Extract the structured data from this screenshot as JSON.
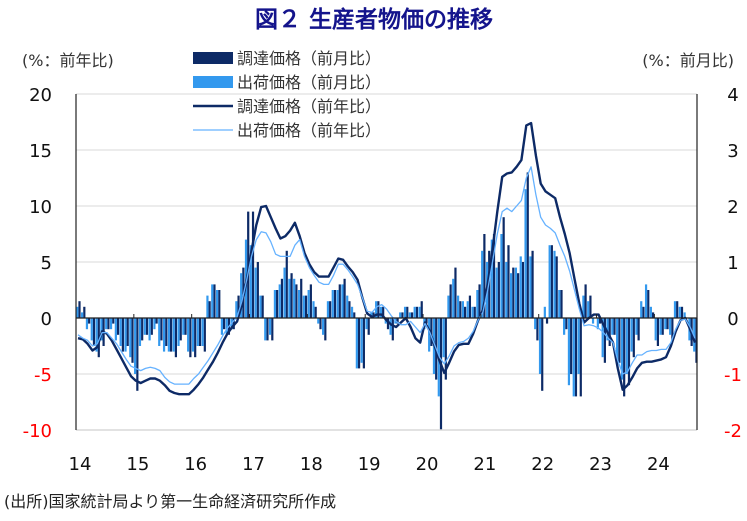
{
  "chart_data": {
    "type": "bar+line",
    "title": "図２ 生産者物価の推移",
    "left_axis_label": "(%：前年比)",
    "right_axis_label": "(%：前月比)",
    "source_note": "(出所)国家統計局より第一生命経済研究所作成",
    "ylim_left": [
      -10,
      20
    ],
    "ylim_right": [
      -2,
      4
    ],
    "left_ticks": [
      "20",
      "15",
      "10",
      "5",
      "0",
      "-5",
      "-10"
    ],
    "right_ticks": [
      "4",
      "3",
      "2",
      "1",
      "0",
      "-1",
      "-2"
    ],
    "x_ticks": [
      "14",
      "15",
      "16",
      "17",
      "18",
      "19",
      "20",
      "21",
      "22",
      "23",
      "24"
    ],
    "x_start": "2014-01",
    "x_end": "2024-09",
    "frequency": "monthly",
    "grid": true,
    "negative_tick_color": "#ff0000",
    "legend_position": "top-left",
    "series": [
      {
        "name": "調達価格（前月比）",
        "kind": "bar",
        "axis": "right",
        "color": "#0d2a66",
        "values": [
          0.3,
          0.2,
          -0.1,
          -0.5,
          -0.7,
          -0.5,
          -0.2,
          -0.1,
          -0.3,
          -0.6,
          -0.5,
          -0.8,
          -1.3,
          -0.4,
          -0.3,
          -0.3,
          -0.1,
          -0.4,
          -0.5,
          -0.6,
          -0.7,
          -0.4,
          -0.3,
          -0.7,
          -0.7,
          -0.5,
          -0.6,
          0.3,
          0.6,
          0.5,
          -0.2,
          -0.3,
          -0.2,
          0.4,
          0.9,
          1.9,
          1.9,
          1.0,
          0.4,
          -0.4,
          -0.4,
          0.5,
          0.7,
          1.2,
          0.8,
          0.6,
          0.7,
          0.4,
          0.6,
          0.2,
          -0.2,
          -0.4,
          0.3,
          0.5,
          0.6,
          0.7,
          0.3,
          0.1,
          -0.9,
          -0.9,
          -0.3,
          0.1,
          0.3,
          0.2,
          -0.2,
          -0.4,
          -0.1,
          0.1,
          0.2,
          0.1,
          0.2,
          0.3,
          -0.1,
          -0.5,
          -1.1,
          -2.0,
          -1.1,
          0.6,
          0.9,
          0.3,
          0.2,
          0.4,
          0.2,
          0.6,
          1.5,
          1.2,
          1.5,
          1.0,
          1.8,
          1.3,
          0.9,
          0.8,
          1.0,
          2.6,
          1.2,
          -0.4,
          -1.3,
          -0.1,
          1.3,
          1.1,
          0.5,
          -0.2,
          -1.0,
          -1.4,
          -1.4,
          0.6,
          0.4,
          0.0,
          -0.1,
          -0.8,
          -0.5,
          -0.3,
          -0.8,
          -1.4,
          -1.2,
          -0.7,
          -0.4,
          0.2,
          0.5,
          0.1,
          -0.5,
          -0.3,
          -0.2,
          -0.4,
          0.3,
          0.2,
          0.0,
          -0.5,
          -0.8
        ]
      },
      {
        "name": "出荷価格（前月比）",
        "kind": "bar",
        "axis": "right",
        "color": "#3399ee",
        "values": [
          0.2,
          0.1,
          -0.2,
          -0.4,
          -0.6,
          -0.4,
          -0.2,
          -0.2,
          -0.4,
          -0.5,
          -0.6,
          -0.7,
          -1.0,
          -0.5,
          -0.3,
          -0.4,
          -0.2,
          -0.5,
          -0.6,
          -0.6,
          -0.6,
          -0.5,
          -0.3,
          -0.6,
          -0.6,
          -0.5,
          -0.5,
          0.4,
          0.6,
          0.5,
          -0.3,
          -0.3,
          -0.2,
          0.3,
          0.8,
          1.4,
          1.3,
          0.9,
          0.4,
          -0.4,
          -0.3,
          0.5,
          0.6,
          0.9,
          0.7,
          0.7,
          0.5,
          0.4,
          0.5,
          0.3,
          -0.1,
          -0.3,
          0.3,
          0.5,
          0.5,
          0.6,
          0.4,
          0.2,
          -0.9,
          -0.8,
          -0.2,
          0.1,
          0.3,
          0.2,
          -0.1,
          -0.3,
          -0.1,
          0.1,
          0.2,
          0.1,
          0.2,
          0.2,
          -0.2,
          -0.6,
          -1.0,
          -1.4,
          -0.7,
          0.4,
          0.7,
          0.4,
          0.3,
          0.3,
          0.2,
          0.5,
          1.2,
          1.0,
          1.4,
          0.9,
          1.5,
          1.0,
          0.8,
          0.9,
          1.1,
          2.3,
          1.1,
          -0.2,
          -1.0,
          0.2,
          1.3,
          1.2,
          0.5,
          -0.3,
          -1.2,
          -1.4,
          -1.0,
          0.4,
          0.3,
          -0.1,
          -0.2,
          -0.7,
          -0.4,
          -0.3,
          -0.8,
          -1.1,
          -1.0,
          -0.6,
          -0.3,
          0.3,
          0.6,
          0.2,
          -0.4,
          -0.3,
          -0.2,
          -0.3,
          0.3,
          0.2,
          0.1,
          -0.4,
          -0.6
        ]
      },
      {
        "name": "調達価格（前年比）",
        "kind": "line",
        "axis": "left",
        "color": "#0d2a66",
        "values": [
          -1.8,
          -1.9,
          -2.3,
          -2.9,
          -2.6,
          -1.2,
          -1.4,
          -2.0,
          -2.8,
          -3.6,
          -4.4,
          -5.2,
          -5.6,
          -5.8,
          -5.6,
          -5.4,
          -5.4,
          -5.6,
          -6.0,
          -6.5,
          -6.7,
          -6.8,
          -6.8,
          -6.8,
          -6.4,
          -5.9,
          -5.3,
          -4.6,
          -3.9,
          -3.1,
          -2.2,
          -1.4,
          -0.8,
          -0.3,
          1.2,
          3.4,
          6.0,
          8.3,
          9.9,
          10.0,
          9.0,
          8.0,
          7.1,
          7.3,
          7.8,
          8.5,
          7.3,
          5.8,
          4.8,
          4.1,
          3.7,
          3.7,
          3.7,
          4.5,
          5.3,
          5.2,
          4.6,
          4.1,
          3.4,
          1.8,
          0.4,
          0.1,
          0.3,
          0.3,
          -0.2,
          -0.6,
          -0.8,
          -0.4,
          0.0,
          -0.8,
          -1.8,
          -2.2,
          -0.4,
          -1.2,
          -2.5,
          -3.8,
          -4.9,
          -4.0,
          -3.0,
          -2.4,
          -2.3,
          -2.3,
          -1.4,
          -0.2,
          0.7,
          3.0,
          6.1,
          9.5,
          12.6,
          12.9,
          13.0,
          13.5,
          14.1,
          17.2,
          17.4,
          14.5,
          12.0,
          11.3,
          11.0,
          10.7,
          9.0,
          7.5,
          5.8,
          3.5,
          1.3,
          -0.4,
          0.0,
          0.3,
          0.3,
          -0.6,
          -1.4,
          -2.2,
          -4.5,
          -6.4,
          -6.0,
          -5.3,
          -4.5,
          -4.0,
          -3.9,
          -3.9,
          -3.8,
          -3.7,
          -3.5,
          -2.5,
          -1.2,
          -0.2,
          0.0,
          -1.0,
          -2.2
        ]
      },
      {
        "name": "出荷価格（前年比）",
        "kind": "line",
        "axis": "left",
        "color": "#66b2ff",
        "values": [
          -1.5,
          -1.8,
          -2.0,
          -2.5,
          -2.3,
          -1.3,
          -1.3,
          -1.8,
          -2.3,
          -3.0,
          -3.7,
          -4.3,
          -4.5,
          -4.7,
          -4.5,
          -4.4,
          -4.5,
          -4.7,
          -5.3,
          -5.7,
          -5.9,
          -5.9,
          -5.9,
          -5.9,
          -5.4,
          -5.0,
          -4.4,
          -3.8,
          -3.1,
          -2.4,
          -1.6,
          -0.9,
          -0.4,
          0.1,
          1.5,
          3.4,
          5.5,
          7.0,
          7.7,
          7.6,
          6.8,
          5.7,
          5.5,
          5.5,
          5.5,
          6.5,
          7.0,
          5.5,
          4.5,
          3.8,
          3.2,
          3.0,
          3.0,
          3.8,
          4.8,
          4.8,
          4.3,
          3.7,
          3.0,
          1.8,
          0.6,
          0.5,
          1.0,
          1.2,
          0.8,
          0.2,
          -0.3,
          -0.6,
          -0.6,
          -0.3,
          -0.8,
          -1.3,
          -0.5,
          -1.3,
          -2.4,
          -3.5,
          -4.1,
          -3.4,
          -2.5,
          -2.2,
          -2.1,
          -1.8,
          -1.2,
          -0.2,
          0.5,
          2.5,
          5.0,
          7.5,
          9.5,
          9.8,
          9.5,
          10.0,
          10.5,
          12.5,
          13.5,
          11.0,
          9.0,
          8.3,
          8.0,
          7.6,
          6.5,
          5.5,
          4.2,
          2.5,
          0.8,
          -0.7,
          -0.6,
          -0.7,
          -0.9,
          -1.3,
          -1.8,
          -2.2,
          -3.8,
          -5.0,
          -4.8,
          -4.0,
          -3.3,
          -3.3,
          -3.0,
          -2.9,
          -2.9,
          -2.8,
          -2.8,
          -2.2,
          -1.0,
          -0.2,
          -0.1,
          -0.8,
          -1.8
        ]
      }
    ]
  }
}
